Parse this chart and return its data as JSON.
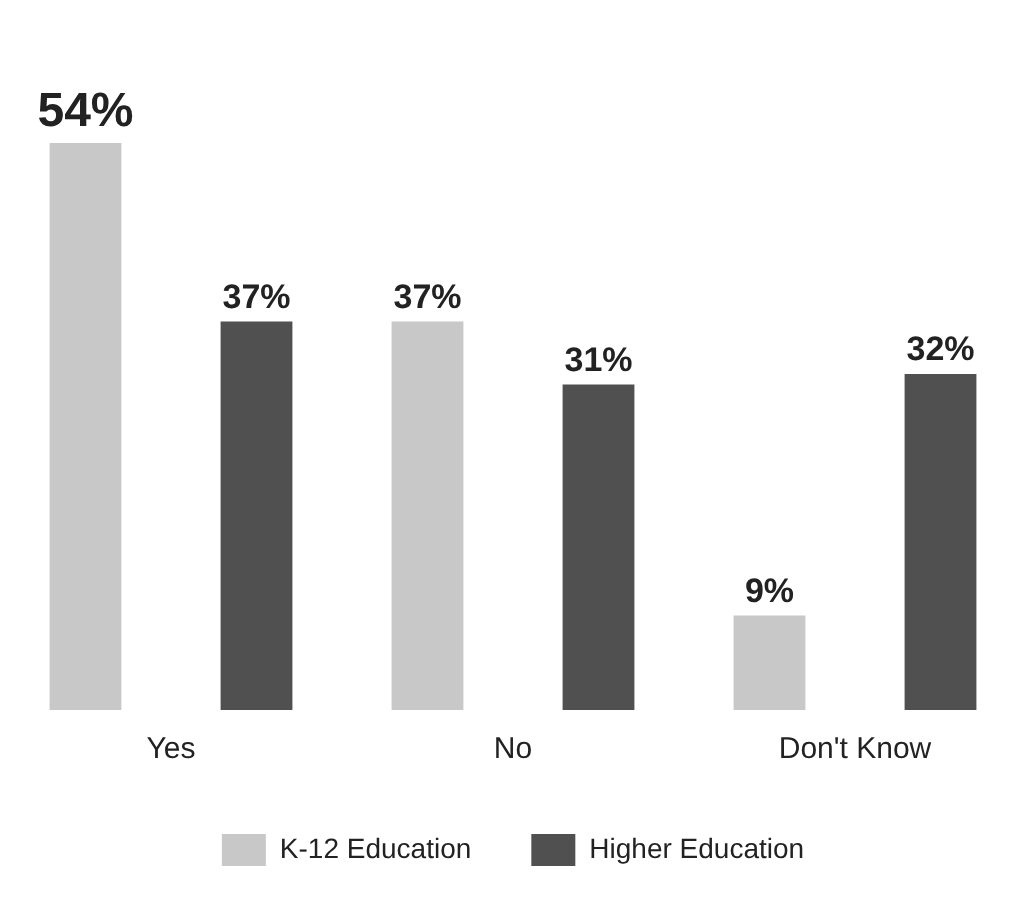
{
  "chart_data": {
    "type": "bar",
    "categories": [
      "Yes",
      "No",
      "Don't Know"
    ],
    "series": [
      {
        "name": "K-12 Education",
        "color": "#c8c8c8",
        "values": [
          54,
          37,
          9
        ],
        "value_labels": [
          "54%",
          "37%",
          "9%"
        ]
      },
      {
        "name": "Higher Education",
        "color": "#505050",
        "values": [
          37,
          31,
          32
        ],
        "value_labels": [
          "37%",
          "31%",
          "32%"
        ]
      }
    ],
    "legend": "bottom"
  }
}
